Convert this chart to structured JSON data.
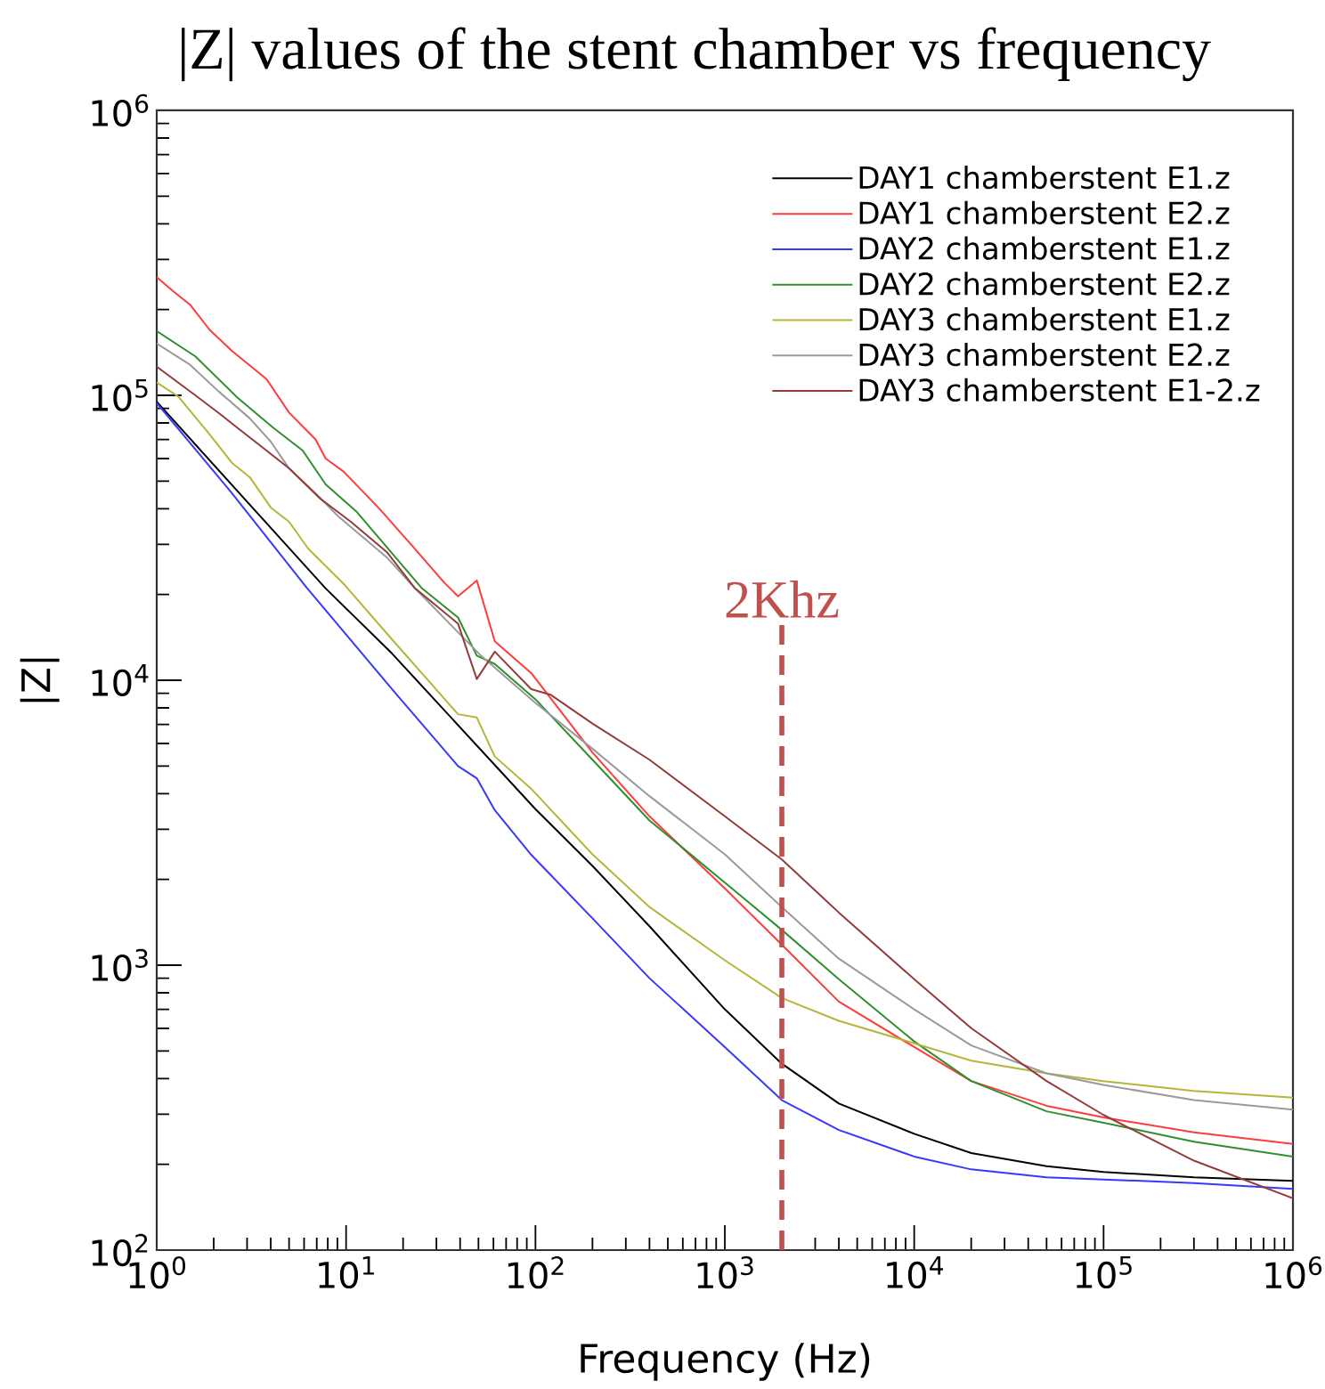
{
  "chart_data": {
    "type": "line",
    "title": "|Z| values of the stent chamber vs frequency",
    "xlabel": "Frequency (Hz)",
    "ylabel": "|Z|",
    "log": "xy",
    "xlim": [
      1,
      1000000
    ],
    "ylim": [
      100,
      1000000
    ],
    "xticks": [
      {
        "value": 1,
        "label": "10$^{0}$"
      },
      {
        "value": 10,
        "label": "10$^{1}$"
      },
      {
        "value": 100,
        "label": "10$^{2}$"
      },
      {
        "value": 1000,
        "label": "10$^{3}$"
      },
      {
        "value": 10000,
        "label": "10$^{4}$"
      },
      {
        "value": 100000,
        "label": "10$^{5}$"
      },
      {
        "value": 1000000,
        "label": "10$^{6}$"
      }
    ],
    "yticks": [
      {
        "value": 100,
        "label": "10$^{2}$"
      },
      {
        "value": 1000,
        "label": "10$^{3}$"
      },
      {
        "value": 10000,
        "label": "10$^{4}$"
      },
      {
        "value": 100000,
        "label": "10$^{5}$"
      },
      {
        "value": 1000000,
        "label": "10$^{6}$"
      }
    ],
    "legend": "top right",
    "series": [
      {
        "name": "DAY1 chamberstent E1.z",
        "color": "#000000",
        "x": [
          1,
          2.6,
          7.8,
          17.5,
          100,
          200,
          400,
          1000,
          2000,
          4000,
          10000,
          20000,
          50000,
          100000,
          300000,
          1000000
        ],
        "values": [
          95000,
          47000,
          21000,
          12400,
          3530,
          2230,
          1370,
          700,
          451,
          327,
          256,
          219,
          197,
          188,
          180,
          175
        ]
      },
      {
        "name": "DAY1 chamberstent E2.z",
        "color": "#ff3b3b",
        "x": [
          1,
          1.2,
          1.5,
          1.9,
          2.5,
          3.8,
          5,
          6.9,
          7.8,
          9.7,
          15,
          22,
          33,
          39,
          49,
          61,
          95,
          200,
          400,
          1000,
          2000,
          4000,
          10000,
          20000,
          50000,
          100000,
          300000,
          1000000
        ],
        "values": [
          260000,
          234000,
          208000,
          170000,
          143000,
          114000,
          87000,
          70000,
          60000,
          54000,
          40000,
          30000,
          22000,
          19700,
          22400,
          13700,
          10600,
          5580,
          3330,
          1860,
          1180,
          745,
          516,
          392,
          321,
          292,
          259,
          236
        ]
      },
      {
        "name": "DAY2 chamberstent E1.z",
        "color": "#3838ff",
        "x": [
          1,
          2.5,
          6.2,
          17.5,
          39,
          49,
          61,
          95,
          200,
          400,
          1000,
          2000,
          4000,
          10000,
          20000,
          50000,
          100000,
          300000,
          1000000
        ],
        "values": [
          94000,
          45300,
          21100,
          9300,
          5000,
          4530,
          3500,
          2440,
          1460,
          900,
          516,
          336,
          264,
          213,
          192,
          180,
          177,
          172,
          164
        ]
      },
      {
        "name": "DAY2 chamberstent E2.z",
        "color": "#2f8f2f",
        "x": [
          1,
          1.6,
          2.65,
          4.1,
          5.9,
          7.8,
          11.3,
          25,
          39,
          49,
          61,
          100,
          200,
          400,
          1000,
          2000,
          4000,
          10000,
          20000,
          50000,
          100000,
          300000,
          1000000
        ],
        "values": [
          168000,
          137000,
          98600,
          77200,
          64000,
          48700,
          39200,
          21100,
          16600,
          12200,
          11400,
          8570,
          5260,
          3220,
          1950,
          1330,
          893,
          540,
          392,
          307,
          280,
          240,
          213
        ]
      },
      {
        "name": "DAY3 chamberstent E1.z",
        "color": "#b5b53c",
        "x": [
          1,
          1.3,
          1.87,
          2.5,
          3.1,
          4,
          5,
          6.3,
          9.7,
          17.5,
          39,
          49,
          61,
          95,
          200,
          400,
          1000,
          2000,
          4000,
          10000,
          20000,
          50000,
          100000,
          300000,
          1000000
        ],
        "values": [
          111000,
          99000,
          74000,
          57900,
          51600,
          40400,
          36000,
          29000,
          21800,
          13900,
          7600,
          7400,
          5400,
          4160,
          2450,
          1600,
          1040,
          767,
          638,
          532,
          462,
          417,
          392,
          362,
          343
        ]
      },
      {
        "name": "DAY3 chamberstent E2.z",
        "color": "#9a9a9a",
        "x": [
          1,
          1.5,
          2.13,
          3.1,
          4,
          5,
          6.9,
          9.1,
          16.4,
          23,
          51.5,
          100,
          200,
          400,
          1000,
          2000,
          4000,
          10000,
          20000,
          50000,
          100000,
          300000,
          1000000
        ],
        "values": [
          152000,
          128000,
          103000,
          83000,
          68800,
          55400,
          45300,
          37600,
          27000,
          21100,
          12200,
          8320,
          5750,
          3920,
          2450,
          1600,
          1054,
          700,
          523,
          417,
          380,
          336,
          311
        ]
      },
      {
        "name": "DAY3 chamberstent E1-2.z",
        "color": "#933c3c",
        "x": [
          1,
          1.6,
          2.13,
          2.65,
          3.8,
          5,
          7.3,
          10.6,
          16.4,
          23,
          39,
          49,
          61,
          95,
          120,
          200,
          400,
          1000,
          2000,
          4000,
          10000,
          20000,
          50000,
          100000,
          300000,
          1000000
        ],
        "values": [
          126000,
          100000,
          86600,
          77200,
          64000,
          55400,
          43400,
          36000,
          28200,
          21100,
          15800,
          10100,
          12600,
          9300,
          8900,
          7050,
          5260,
          3330,
          2350,
          1530,
          893,
          601,
          392,
          298,
          206,
          152
        ]
      }
    ],
    "ref_lines": [
      {
        "axis": "x",
        "value": 2000,
        "label": "2Khz",
        "color": "#c0504d",
        "line_style": "dashed"
      }
    ]
  }
}
